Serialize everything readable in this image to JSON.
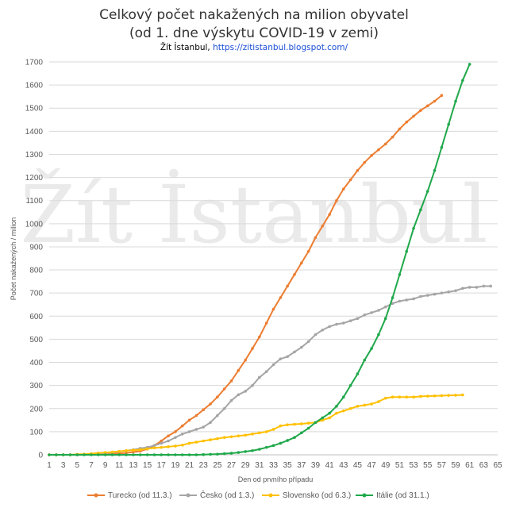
{
  "title_line1": "Celkový počet nakažených na milion obyvatel",
  "title_line2": "(od 1. dne výskytu COVID-19 v zemi)",
  "credit_prefix": "Žít İstanbul, ",
  "credit_link": "https://zitistanbul.blogspot.com/",
  "watermark": "Žít İstanbul",
  "colors": {
    "turecko": "#ed7d31",
    "cesko": "#a5a5a5",
    "slovensko": "#ffc000",
    "italie": "#1fa84a",
    "grid": "#d9d9d9"
  },
  "chart_data": {
    "type": "line",
    "title": "Celkový počet nakažených na milion obyvatel (od 1. dne výskytu COVID-19 v zemi)",
    "xlabel": "Den od prvního případu",
    "ylabel": "Počet nakažených / milion",
    "x_ticks": [
      1,
      3,
      5,
      7,
      9,
      11,
      13,
      15,
      17,
      19,
      21,
      23,
      25,
      27,
      29,
      31,
      33,
      35,
      37,
      39,
      41,
      43,
      45,
      47,
      49,
      51,
      53,
      55,
      57,
      59,
      61,
      63,
      65
    ],
    "xlim": [
      1,
      65
    ],
    "ylim": [
      0,
      1700
    ],
    "y_ticks": [
      0,
      100,
      200,
      300,
      400,
      500,
      600,
      700,
      800,
      900,
      1000,
      1100,
      1200,
      1300,
      1400,
      1500,
      1600,
      1700
    ],
    "grid": true,
    "legend_position": "bottom",
    "series": [
      {
        "name": "Turecko (od 11.3.)",
        "color": "#ed7d31",
        "start_day": 1,
        "values": [
          0,
          0,
          0,
          0,
          0,
          1,
          1,
          2,
          3,
          4,
          6,
          8,
          12,
          16,
          25,
          40,
          60,
          82,
          100,
          125,
          150,
          170,
          195,
          220,
          250,
          285,
          320,
          365,
          410,
          460,
          510,
          570,
          630,
          680,
          730,
          780,
          830,
          880,
          940,
          990,
          1040,
          1100,
          1150,
          1190,
          1230,
          1265,
          1295,
          1320,
          1345,
          1375,
          1410,
          1440,
          1465,
          1490,
          1510,
          1530,
          1555
        ]
      },
      {
        "name": "Česko (od 1.3.)",
        "color": "#a5a5a5",
        "start_day": 1,
        "values": [
          0,
          0,
          0,
          0,
          1,
          2,
          3,
          5,
          7,
          10,
          14,
          18,
          22,
          28,
          32,
          40,
          50,
          60,
          75,
          90,
          100,
          110,
          120,
          140,
          170,
          200,
          235,
          260,
          275,
          300,
          335,
          360,
          390,
          415,
          425,
          445,
          465,
          490,
          520,
          540,
          555,
          565,
          570,
          580,
          590,
          605,
          615,
          625,
          640,
          655,
          665,
          670,
          675,
          685,
          690,
          695,
          700,
          705,
          710,
          720,
          725,
          725,
          730,
          730
        ]
      },
      {
        "name": "Slovensko (od 6.3.)",
        "color": "#ffc000",
        "start_day": 1,
        "values": [
          0,
          0,
          0,
          0,
          2,
          3,
          5,
          8,
          10,
          12,
          15,
          18,
          20,
          22,
          26,
          30,
          32,
          35,
          38,
          42,
          50,
          55,
          60,
          65,
          70,
          75,
          78,
          82,
          85,
          90,
          95,
          100,
          110,
          125,
          130,
          132,
          134,
          137,
          140,
          150,
          160,
          180,
          190,
          200,
          210,
          215,
          220,
          230,
          245,
          250,
          250,
          250,
          250,
          253,
          254,
          255,
          256,
          257,
          258,
          259
        ]
      },
      {
        "name": "Itálie (od 31.1.)",
        "color": "#1fa84a",
        "start_day": 1,
        "values": [
          0,
          0,
          0,
          0,
          0,
          0,
          0,
          0,
          0,
          0,
          0,
          0,
          0,
          0,
          0,
          0,
          0,
          0,
          0,
          0,
          0,
          0,
          1,
          2,
          3,
          5,
          7,
          10,
          14,
          18,
          24,
          32,
          40,
          50,
          62,
          75,
          95,
          115,
          140,
          160,
          180,
          210,
          250,
          300,
          350,
          410,
          460,
          520,
          590,
          680,
          780,
          880,
          980,
          1060,
          1140,
          1230,
          1330,
          1430,
          1530,
          1620,
          1690
        ]
      }
    ]
  }
}
